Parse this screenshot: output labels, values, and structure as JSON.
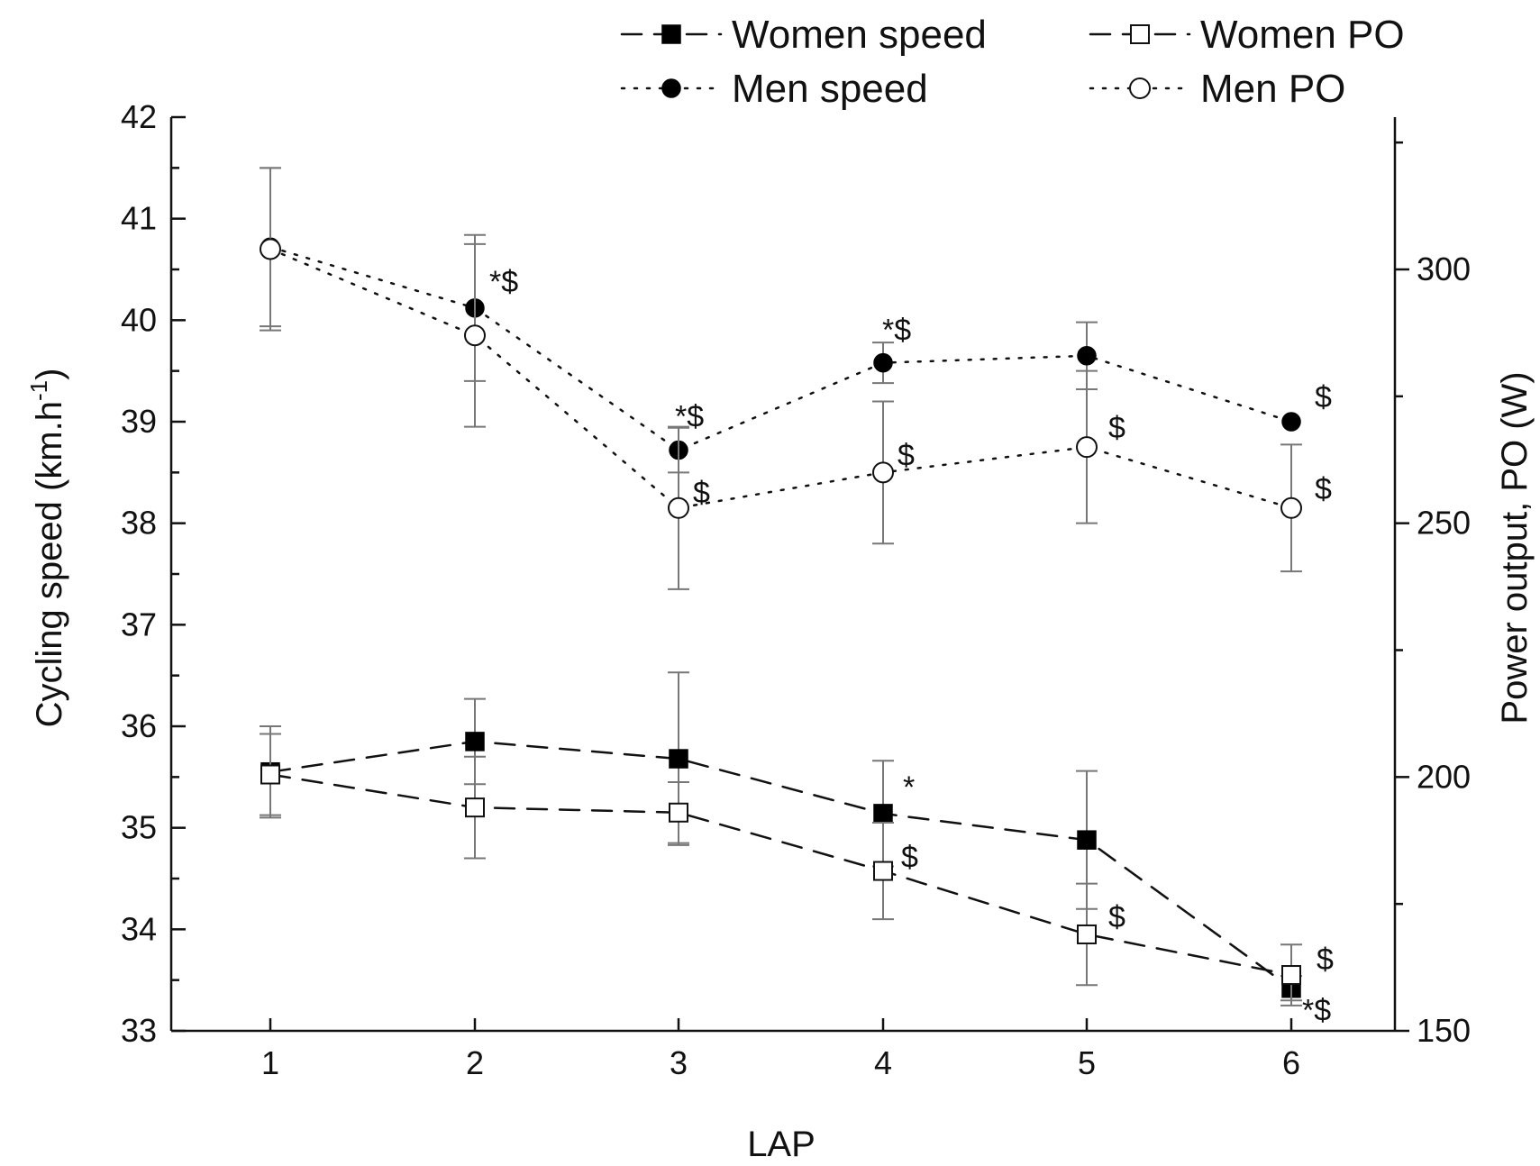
{
  "chart_data": {
    "type": "line",
    "xlabel": "LAP",
    "ylabel": "Cycling speed (km.h",
    "ylabel_sup": "-1",
    "ylabel_close": ")",
    "y2label": "Power output, PO (W)",
    "x": [
      1,
      2,
      3,
      4,
      5,
      6
    ],
    "x_ticks": [
      "1",
      "2",
      "3",
      "4",
      "5",
      "6"
    ],
    "ylim": [
      33,
      42
    ],
    "y_ticks": [
      "33",
      "34",
      "35",
      "36",
      "37",
      "38",
      "39",
      "40",
      "41",
      "42"
    ],
    "y2lim": [
      150,
      330
    ],
    "y2_ticks": [
      "150",
      "200",
      "250",
      "300"
    ],
    "grid": false,
    "legend_position": "top",
    "series": [
      {
        "name": "Women speed",
        "axis": "left",
        "line": "dashed",
        "marker": "filled-square",
        "values": [
          35.55,
          35.85,
          35.68,
          35.14,
          34.88,
          33.42
        ],
        "err": [
          0.45,
          0.42,
          0.85,
          0.52,
          0.68,
          0.12
        ]
      },
      {
        "name": "Men speed",
        "axis": "left",
        "line": "dotted",
        "marker": "filled-circle",
        "values": [
          40.72,
          40.12,
          38.72,
          39.58,
          39.65,
          39.0
        ],
        "err": [
          0.78,
          0.72,
          0.22,
          0.2,
          0.33,
          0.0
        ]
      },
      {
        "name": "Women PO",
        "axis": "right",
        "line": "dashed",
        "marker": "open-square",
        "values": [
          200.5,
          194,
          193,
          181.5,
          169,
          161
        ],
        "err": [
          8,
          10,
          6,
          9.5,
          10,
          6
        ]
      },
      {
        "name": "Men PO",
        "axis": "right",
        "line": "dotted",
        "marker": "open-circle",
        "values": [
          304,
          287,
          253,
          260,
          265,
          253
        ],
        "err": [
          16,
          18,
          16,
          14,
          15,
          12.5
        ]
      }
    ],
    "annotations": [
      {
        "text": "*$",
        "series": "Men speed",
        "x": 2
      },
      {
        "text": "*$",
        "series": "Men speed",
        "x": 3
      },
      {
        "text": "*$",
        "series": "Men speed",
        "x": 4
      },
      {
        "text": "$",
        "series": "Men speed",
        "x": 6
      },
      {
        "text": "$",
        "series": "Men PO",
        "x": 3
      },
      {
        "text": "$",
        "series": "Men PO",
        "x": 4
      },
      {
        "text": "$",
        "series": "Men PO",
        "x": 5
      },
      {
        "text": "$",
        "series": "Men PO",
        "x": 6
      },
      {
        "text": "*",
        "series": "Women speed",
        "x": 4
      },
      {
        "text": "*$",
        "series": "Women speed",
        "x": 6
      },
      {
        "text": "$",
        "series": "Women PO",
        "x": 4
      },
      {
        "text": "$",
        "series": "Women PO",
        "x": 5
      },
      {
        "text": "$",
        "series": "Women PO",
        "x": 6
      }
    ]
  },
  "legend": [
    {
      "label": "Women speed",
      "line": "dashed",
      "marker": "filled-square"
    },
    {
      "label": "Women PO",
      "line": "dashed",
      "marker": "open-square"
    },
    {
      "label": "Men speed",
      "line": "dotted",
      "marker": "filled-circle"
    },
    {
      "label": "Men PO",
      "line": "dotted",
      "marker": "open-circle"
    }
  ]
}
